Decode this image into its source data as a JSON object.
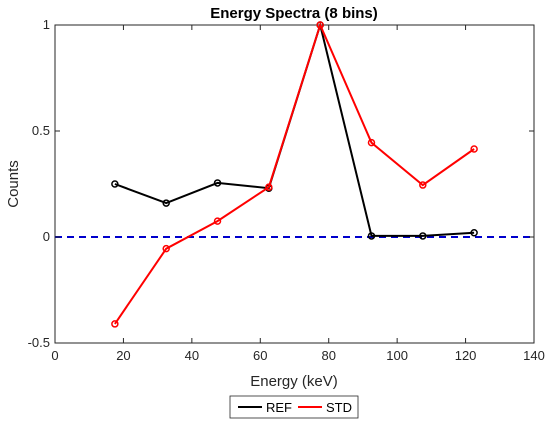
{
  "chart_data": {
    "type": "line",
    "title": "Energy Spectra (8 bins)",
    "xlabel": "Energy (keV)",
    "ylabel": "Counts",
    "xlim": [
      0,
      140
    ],
    "ylim": [
      -0.5,
      1
    ],
    "xticks": [
      0,
      20,
      40,
      60,
      80,
      100,
      120,
      140
    ],
    "yticks": [
      -0.5,
      0,
      0.5,
      1
    ],
    "xtick_labels": [
      "0",
      "20",
      "40",
      "60",
      "80",
      "100",
      "120",
      "140"
    ],
    "ytick_labels": [
      "-0.5",
      "0",
      "0.5",
      "1"
    ],
    "grid": false,
    "legend_position": "bottom-outside",
    "reference_line": {
      "y": 0,
      "style": "dashed",
      "color": "#0000cc"
    },
    "x": [
      17.5,
      32.5,
      47.5,
      62.5,
      77.5,
      92.5,
      107.5,
      122.5
    ],
    "series": [
      {
        "name": "REF",
        "color": "#000000",
        "marker": "circle",
        "values": [
          0.25,
          0.16,
          0.255,
          0.23,
          1.0,
          0.005,
          0.005,
          0.02
        ]
      },
      {
        "name": "STD",
        "color": "#ff0000",
        "marker": "circle",
        "values": [
          -0.41,
          -0.055,
          0.075,
          0.235,
          1.0,
          0.445,
          0.245,
          0.415
        ]
      }
    ]
  }
}
